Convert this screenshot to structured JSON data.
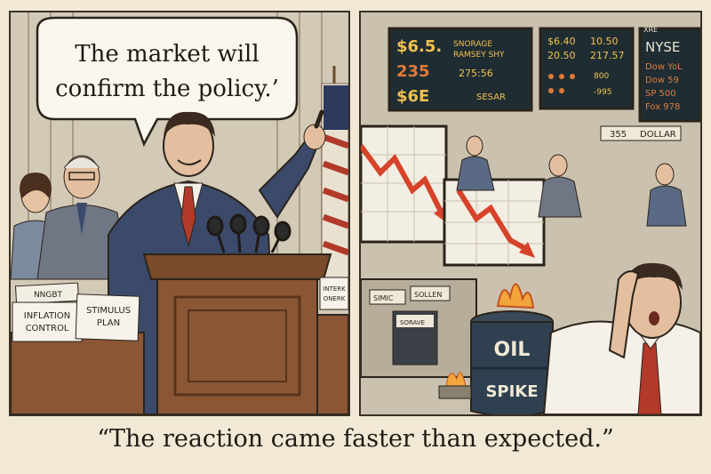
{
  "left_panel": {
    "speech": [
      "The market will",
      "confirm the policy.’"
    ],
    "documents": [
      {
        "label_top": "NNGBT",
        "lines": [
          "INFLATION",
          "CONTROL"
        ]
      },
      {
        "lines": [
          "STIMULUS",
          "PLAN"
        ]
      }
    ],
    "side_note": [
      "INTERK",
      "ONERK"
    ]
  },
  "right_panel": {
    "screen1": [
      "$6.5.",
      "SNORAGE",
      "RAMSEY SHY",
      "235",
      "275:56",
      "$6E",
      "SESAR"
    ],
    "screen2": [
      "$6.40",
      "10.50",
      "20.50",
      "217.57",
      "800",
      "-995"
    ],
    "screen3": [
      "XRE",
      "NYSE",
      "Dow YoL",
      "Dow 59",
      "SP 500",
      "Fox 978"
    ],
    "ticker_strip": [
      "355",
      "DOLLAR"
    ],
    "desk_signs": [
      "SIMIC",
      "SOLLEN",
      "SORAVE"
    ],
    "barrel": [
      "OIL",
      "SPIKE"
    ]
  },
  "caption": "“The reaction came faster than expected.”",
  "colors": {
    "ink": "#2b241b",
    "paper": "#f1e9d6",
    "suit": "#3b4a6b",
    "tie": "#b23a2a",
    "arrow": "#d6432a",
    "screen_bg": "#1f2d33",
    "screen_text": "#f2c14e"
  }
}
